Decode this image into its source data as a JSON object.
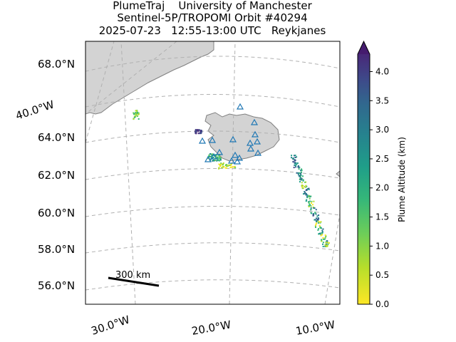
{
  "title": {
    "line1": "PlumeTraj    University of Manchester",
    "line2": "Sentinel-5P/TROPOMI Orbit #40294",
    "line3": "2025-07-23   12:55-13:00 UTC   Reykjanes"
  },
  "latitude_labels": [
    "68.0°N",
    "64.0°N",
    "62.0°N",
    "60.0°N",
    "58.0°N",
    "56.0°N"
  ],
  "longitude_labels": [
    "40.0°W",
    "30.0°W",
    "20.0°W",
    "10.0°W"
  ],
  "scale_bar": {
    "label": "300 km"
  },
  "colorbar": {
    "label": "Plume Altitude (km)",
    "ticks": [
      "0.0",
      "0.5",
      "1.0",
      "1.5",
      "2.0",
      "2.5",
      "3.0",
      "3.5",
      "4.0"
    ],
    "min": 0.0,
    "max": 4.3,
    "extend": "max",
    "colormap": "viridis (reversed)"
  },
  "colors": {
    "land": "#d3d3d3",
    "coast": "#808080",
    "grid": "#b0b0b0",
    "volcano_marker": "#1f77b4"
  },
  "legend_icons": {
    "volcano_marker": "triangle-icon"
  }
}
